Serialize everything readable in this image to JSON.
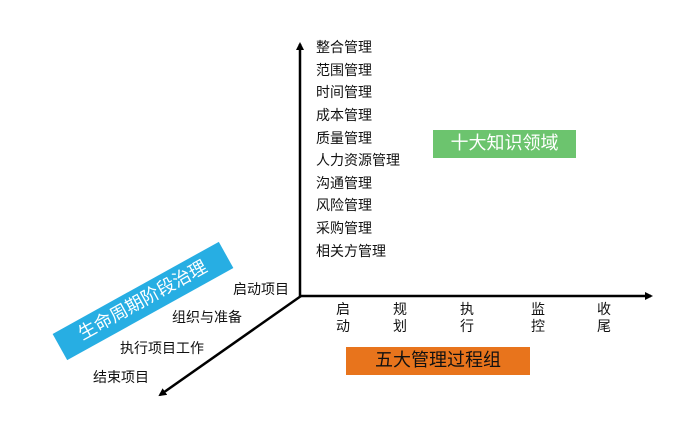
{
  "knowledge_areas": {
    "title": "十大知识领域",
    "items": [
      "整合管理",
      "范围管理",
      "时间管理",
      "成本管理",
      "质量管理",
      "人力资源管理",
      "沟通管理",
      "风险管理",
      "采购管理",
      "相关方管理"
    ]
  },
  "process_groups": {
    "title": "五大管理过程组",
    "items": [
      [
        "启",
        "动"
      ],
      [
        "规",
        "划"
      ],
      [
        "执",
        "行"
      ],
      [
        "监",
        "控"
      ],
      [
        "收",
        "尾"
      ]
    ]
  },
  "lifecycle": {
    "title": "生命周期阶段治理",
    "items": [
      "启动项目",
      "组织与准备",
      "执行项目工作",
      "结束项目"
    ]
  },
  "colors": {
    "green": "#6cc46e",
    "orange": "#e8741c",
    "blue": "#27aee3",
    "axis": "#000000"
  }
}
